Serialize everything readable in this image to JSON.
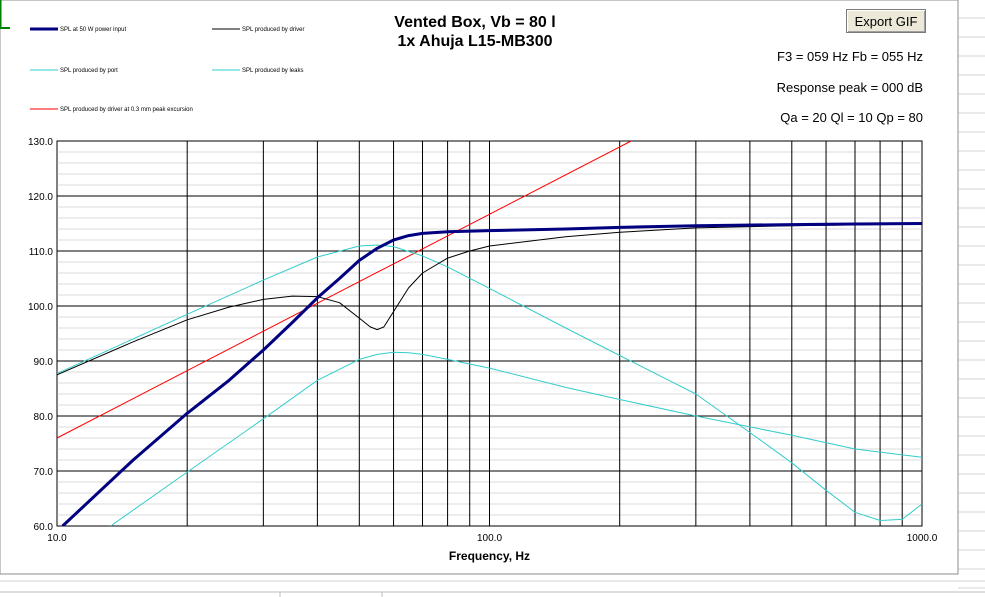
{
  "title": {
    "line1": "Vented Box, Vb = 80 l",
    "line2": "1x Ahuja L15-MB300"
  },
  "info": {
    "f3_fb": "F3 = 059 Hz  Fb = 055 Hz",
    "response_peak": "Response peak = 000 dB",
    "q_values": "Qa = 20  Ql = 10  Qp = 80"
  },
  "toolbar": {
    "export_label": "Export GIF"
  },
  "colors": {
    "grid": "#000000",
    "spl_total": "#000080",
    "driver": "#000000",
    "port": "#33cccc",
    "leaks": "#33cccc",
    "excursion": "#ff0000",
    "sheet_grid": "#d4d4d4",
    "sheet_green": "#008000"
  },
  "chart_data": {
    "type": "line",
    "x_scale": "log",
    "xlim": [
      10,
      1000
    ],
    "ylim": [
      60,
      130
    ],
    "xlabel": "Frequency, Hz",
    "ylabel": "",
    "grid": true,
    "legend_position": "top-left",
    "x_ticks": [
      "10.0",
      "100.0",
      "1000.0"
    ],
    "y_ticks": [
      "60.0",
      "70.0",
      "80.0",
      "90.0",
      "100.0",
      "110.0",
      "120.0",
      "130.0"
    ],
    "series": [
      {
        "name": "SPL at 50 W power input",
        "color_key": "spl_total",
        "width": 3,
        "x": [
          10.3,
          15,
          20,
          25,
          30,
          35,
          40,
          45,
          50,
          55,
          60,
          65,
          70,
          80,
          100,
          150,
          200,
          300,
          500,
          700,
          1000
        ],
        "y": [
          60,
          72,
          80.5,
          86.5,
          92,
          97,
          101.5,
          105,
          108.3,
          110.5,
          112,
          112.8,
          113.2,
          113.5,
          113.7,
          114,
          114.3,
          114.6,
          114.8,
          114.9,
          115
        ]
      },
      {
        "name": "SPL produced by driver",
        "color_key": "driver",
        "width": 1,
        "x": [
          10,
          15,
          20,
          25,
          30,
          35,
          40,
          45,
          50,
          53,
          55,
          57,
          60,
          65,
          70,
          80,
          90,
          100,
          150,
          200,
          300,
          500,
          1000
        ],
        "y": [
          87.5,
          93.5,
          97.5,
          99.8,
          101.2,
          101.8,
          101.7,
          100.6,
          97.8,
          96.2,
          95.7,
          96.2,
          99,
          103.3,
          106,
          108.7,
          110,
          110.9,
          112.6,
          113.4,
          114.2,
          114.6,
          114.9
        ]
      },
      {
        "name": "SPL produced by port",
        "color_key": "port",
        "width": 1,
        "x": [
          10,
          20,
          30,
          40,
          50,
          55,
          60,
          70,
          80,
          100,
          150,
          200,
          300,
          400,
          500,
          600,
          700,
          800,
          900,
          1000
        ],
        "y": [
          87.7,
          98.5,
          104.7,
          108.9,
          110.9,
          111.1,
          110.8,
          109.1,
          107.1,
          103.2,
          96,
          91,
          84,
          77,
          71.5,
          66.5,
          62.5,
          61,
          61.2,
          64
        ]
      },
      {
        "name": "SPL produced by leaks",
        "color_key": "leaks",
        "width": 1,
        "x": [
          13.3,
          20,
          30,
          40,
          50,
          55,
          60,
          65,
          70,
          80,
          100,
          150,
          200,
          300,
          500,
          700,
          1000
        ],
        "y": [
          60,
          69.8,
          79.5,
          86.5,
          90.3,
          91.2,
          91.6,
          91.5,
          91.2,
          90.3,
          88.7,
          85.2,
          83,
          80,
          76.5,
          74,
          72.5
        ]
      },
      {
        "name": "SPL produced by driver at 0.3 mm peak excursion",
        "color_key": "excursion",
        "width": 1,
        "x": [
          10,
          212.5
        ],
        "y": [
          76,
          130
        ]
      }
    ]
  }
}
